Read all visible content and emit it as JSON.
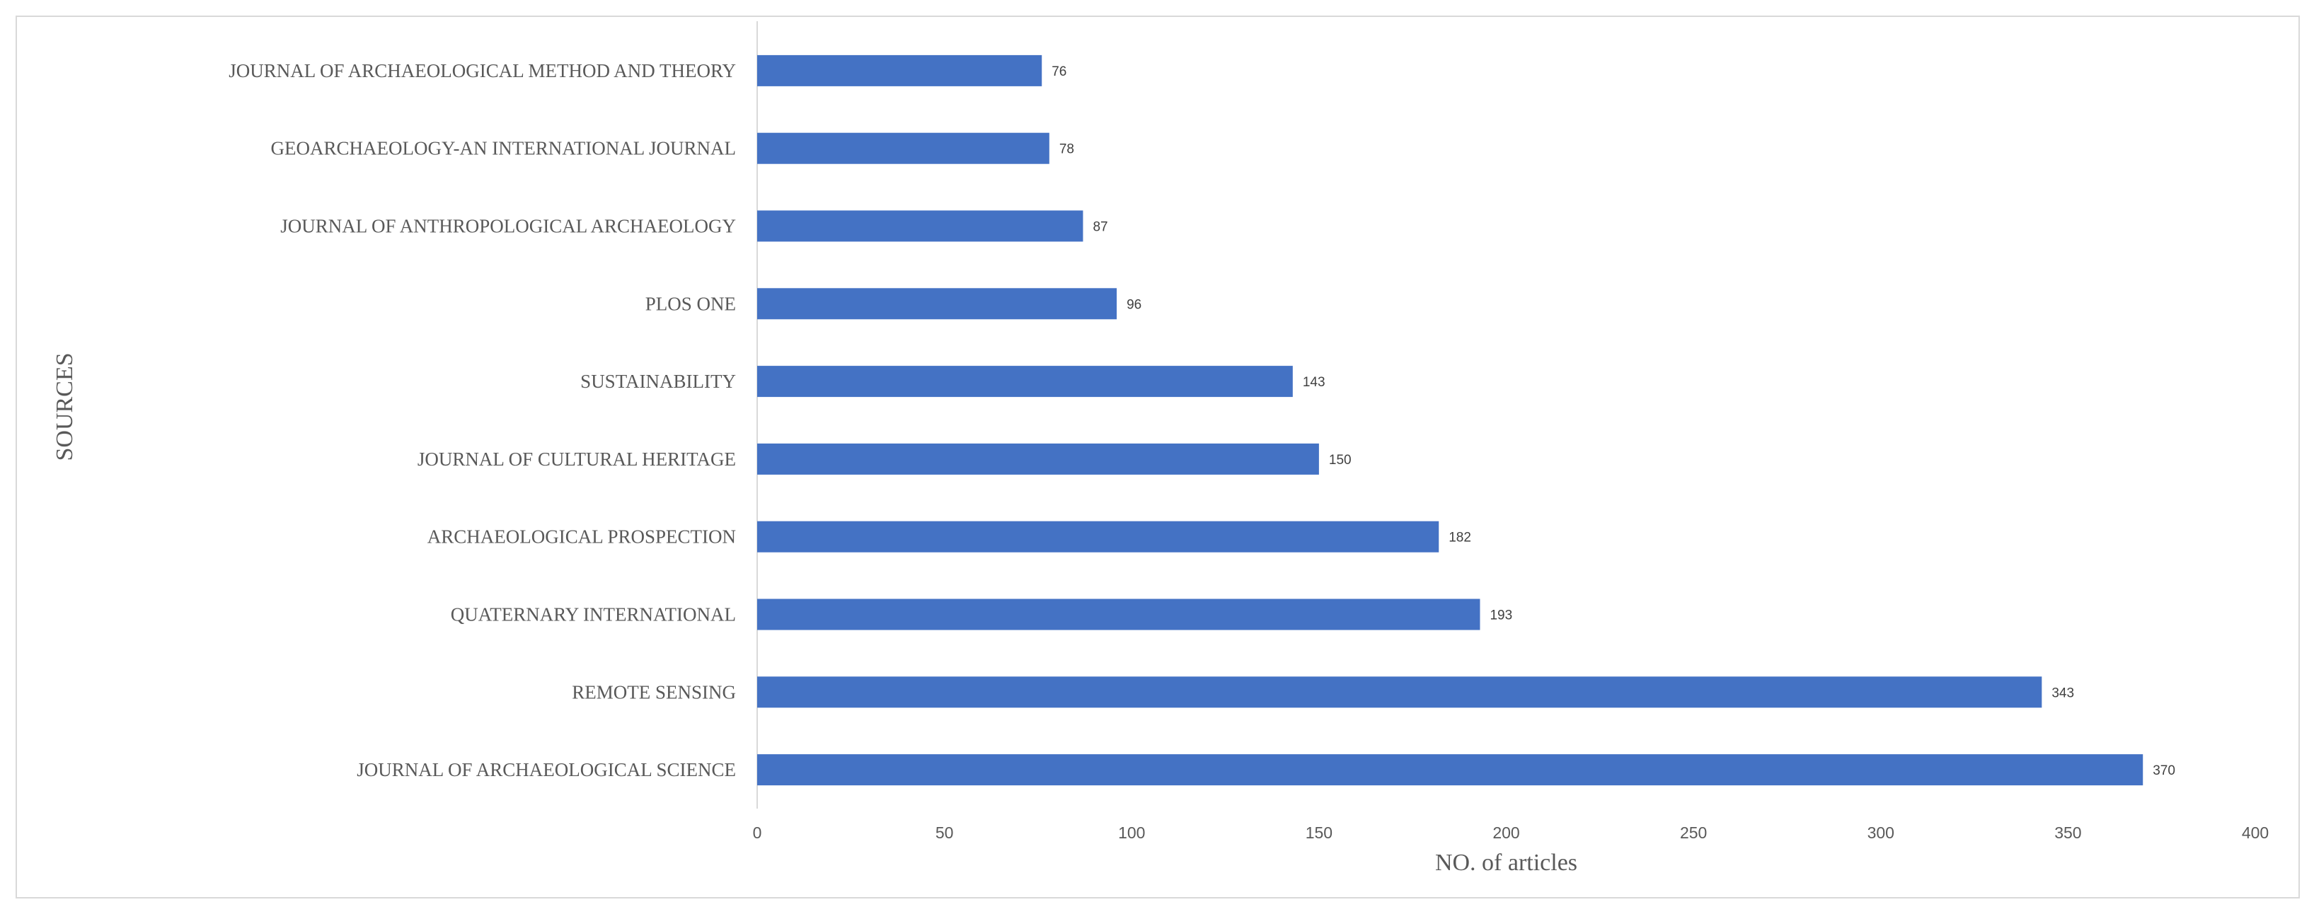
{
  "chart_data": {
    "type": "bar",
    "orientation": "horizontal",
    "categories": [
      "JOURNAL OF ARCHAEOLOGICAL METHOD AND THEORY",
      "GEOARCHAEOLOGY-AN INTERNATIONAL JOURNAL",
      "JOURNAL OF ANTHROPOLOGICAL ARCHAEOLOGY",
      "PLOS ONE",
      "SUSTAINABILITY",
      "JOURNAL OF CULTURAL HERITAGE",
      "ARCHAEOLOGICAL PROSPECTION",
      "QUATERNARY INTERNATIONAL",
      "REMOTE SENSING",
      "JOURNAL OF ARCHAEOLOGICAL SCIENCE"
    ],
    "values": [
      76,
      78,
      87,
      96,
      143,
      150,
      182,
      193,
      343,
      370
    ],
    "xlabel": "NO. of articles",
    "ylabel": "SOURCES",
    "xlim": [
      0,
      400
    ],
    "xticks": [
      0,
      50,
      100,
      150,
      200,
      250,
      300,
      350,
      400
    ],
    "grid": false,
    "legend": "none",
    "bar_color": "#4472c4",
    "data_labels": true
  }
}
